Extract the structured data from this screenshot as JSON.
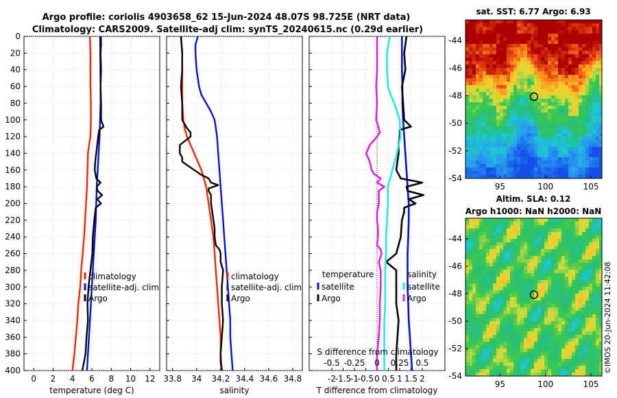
{
  "header": {
    "title_line1": "Argo profile: coriolis 4903658_62 15-Jun-2024 48.07S 98.725E (NRT data)",
    "title_line2": "Climatology: CARS2009. Satellite-adj clim: synTS_20240615.nc (0.29d earlier)",
    "watermark": "©IMOS 20-Jun-2024 11:42:08"
  },
  "colors": {
    "climatology": "#ff2200",
    "satellite": "#0010d8",
    "argo": "#000000",
    "temperature_diff": "#e020e0",
    "salinity_diff": "#20e8e8"
  },
  "chart_data": [
    {
      "type": "line",
      "id": "temperature",
      "title": "",
      "xlabel": "temperature (deg C)",
      "ylabel": "",
      "xlim": [
        -1,
        13
      ],
      "ylim": [
        400,
        0
      ],
      "x_ticks": [
        0,
        2,
        4,
        6,
        8,
        10,
        12
      ],
      "y_ticks": [
        0,
        20,
        40,
        60,
        80,
        100,
        120,
        140,
        160,
        180,
        200,
        220,
        240,
        260,
        280,
        300,
        320,
        340,
        360,
        380,
        400
      ],
      "grid": true,
      "legend": [
        "climatology",
        "satellite-adj. clim",
        "Argo"
      ],
      "legend_position": "right-middle",
      "series": [
        {
          "name": "climatology",
          "color": "#ff2200",
          "depth": [
            0,
            20,
            40,
            60,
            80,
            100,
            120,
            130,
            140,
            160,
            180,
            200,
            220,
            240,
            260,
            280,
            300,
            320,
            340,
            360,
            380,
            400
          ],
          "values": [
            5.8,
            5.85,
            5.85,
            5.85,
            5.9,
            5.9,
            5.85,
            5.7,
            5.6,
            5.55,
            5.5,
            5.4,
            5.3,
            5.2,
            5.05,
            4.9,
            4.8,
            4.6,
            4.5,
            4.35,
            4.2,
            4.0
          ]
        },
        {
          "name": "satellite-adj. clim",
          "color": "#0010d8",
          "depth": [
            0,
            20,
            40,
            60,
            80,
            100,
            120,
            140,
            160,
            180,
            200,
            220,
            240,
            260,
            280,
            300,
            320,
            340,
            360,
            380,
            400
          ],
          "values": [
            6.85,
            6.87,
            6.88,
            6.9,
            6.9,
            6.85,
            6.8,
            6.7,
            6.6,
            6.5,
            6.45,
            6.4,
            6.3,
            6.2,
            6.1,
            6.0,
            5.9,
            5.8,
            5.7,
            5.6,
            5.5
          ]
        },
        {
          "name": "Argo",
          "color": "#000000",
          "depth": [
            0,
            10,
            20,
            40,
            60,
            80,
            100,
            108,
            112,
            120,
            130,
            140,
            150,
            160,
            170,
            175,
            180,
            185,
            190,
            195,
            200,
            205,
            210,
            220,
            240,
            260,
            280,
            300,
            320,
            340,
            360,
            380,
            395,
            400
          ],
          "values": [
            6.93,
            6.95,
            6.9,
            6.95,
            6.9,
            6.95,
            6.95,
            7.2,
            6.75,
            6.65,
            6.55,
            6.45,
            6.35,
            6.3,
            6.45,
            6.9,
            6.5,
            6.6,
            7.05,
            6.55,
            6.95,
            6.4,
            6.35,
            6.25,
            6.1,
            6.05,
            5.85,
            5.65,
            5.55,
            5.6,
            5.45,
            5.35,
            5.1,
            5.0
          ]
        }
      ]
    },
    {
      "type": "line",
      "id": "salinity",
      "title": "",
      "xlabel": "salinity",
      "ylabel": "",
      "xlim": [
        33.75,
        34.88
      ],
      "ylim": [
        400,
        0
      ],
      "x_ticks": [
        33.8,
        34,
        34.2,
        34.4,
        34.6,
        34.8
      ],
      "y_ticks": [
        0,
        20,
        40,
        60,
        80,
        100,
        120,
        140,
        160,
        180,
        200,
        220,
        240,
        260,
        280,
        300,
        320,
        340,
        360,
        380,
        400
      ],
      "grid": true,
      "legend": [
        "climatology",
        "satellite-adj. clim",
        "Argo"
      ],
      "legend_position": "right-middle",
      "series": [
        {
          "name": "climatology",
          "color": "#ff2200",
          "depth": [
            0,
            20,
            40,
            60,
            80,
            100,
            110,
            120,
            130,
            140,
            150,
            160,
            170,
            180,
            200,
            220,
            240,
            260,
            280,
            300,
            320,
            340,
            360,
            380,
            400
          ],
          "values": [
            33.87,
            33.88,
            33.88,
            33.88,
            33.88,
            33.89,
            33.9,
            33.92,
            33.95,
            33.98,
            34.01,
            34.04,
            34.06,
            34.08,
            34.1,
            34.12,
            34.14,
            34.15,
            34.16,
            34.17,
            34.18,
            34.19,
            34.2,
            34.2,
            34.21
          ]
        },
        {
          "name": "satellite-adj. clim",
          "color": "#0010d8",
          "depth": [
            0,
            10,
            20,
            40,
            50,
            60,
            70,
            80,
            90,
            100,
            120,
            140,
            160,
            180,
            200,
            220,
            240,
            260,
            280,
            300,
            320,
            340,
            360,
            380,
            400
          ],
          "values": [
            34.01,
            33.99,
            33.99,
            34.0,
            34.01,
            34.02,
            34.04,
            34.08,
            34.12,
            34.15,
            34.17,
            34.18,
            34.19,
            34.2,
            34.21,
            34.22,
            34.23,
            34.24,
            34.25,
            34.26,
            34.27,
            34.28,
            34.28,
            34.29,
            34.3
          ]
        },
        {
          "name": "Argo",
          "color": "#000000",
          "depth": [
            0,
            20,
            40,
            60,
            80,
            100,
            110,
            115,
            120,
            130,
            140,
            145,
            150,
            160,
            165,
            170,
            175,
            178,
            182,
            185,
            190,
            200,
            210,
            220,
            230,
            240,
            250,
            255,
            260,
            270,
            280,
            300,
            320,
            340,
            360,
            380,
            390,
            400
          ],
          "values": [
            33.87,
            33.88,
            33.88,
            33.87,
            33.88,
            33.88,
            33.92,
            33.95,
            33.95,
            33.86,
            33.86,
            33.88,
            33.88,
            33.98,
            34.03,
            34.1,
            34.12,
            34.18,
            34.1,
            34.1,
            34.12,
            34.12,
            34.13,
            34.14,
            34.15,
            34.15,
            34.16,
            34.19,
            34.2,
            34.2,
            34.22,
            34.21,
            34.21,
            34.22,
            34.21,
            34.2,
            34.2,
            34.21
          ]
        }
      ]
    },
    {
      "type": "line",
      "id": "differences",
      "title": "",
      "xlabel": "T difference from climatology",
      "xlabel_secondary": "S difference from climatology",
      "ylabel": "",
      "xlim": [
        -3,
        3
      ],
      "ylim": [
        400,
        0
      ],
      "x_ticks": [
        -2,
        -1.5,
        -1,
        -0.5,
        0,
        0.5,
        1,
        1.5,
        2
      ],
      "x_tick_labels": [
        "-2",
        "-1.5",
        "-1",
        "-0.5",
        "0",
        "0.5",
        "1",
        "1.5",
        "2"
      ],
      "secondary_x_ticks": [
        -0.5,
        -0.25,
        0,
        0.25,
        0.5
      ],
      "secondary_x_tick_labels": [
        "-0.5",
        "-0.25",
        "0",
        "0.25",
        "0.5"
      ],
      "y_ticks": [
        0,
        20,
        40,
        60,
        80,
        100,
        120,
        140,
        160,
        180,
        200,
        220,
        240,
        260,
        280,
        300,
        320,
        340,
        360,
        380,
        400
      ],
      "grid": true,
      "legend_left_title": "temperature",
      "legend_left": [
        "satellite",
        "Argo"
      ],
      "legend_right_title": "salinity",
      "legend_right": [
        "satellite",
        "Argo"
      ],
      "legend_position": "middle",
      "series": [
        {
          "name": "T satellite",
          "color": "#0010d8",
          "depth": [
            0,
            20,
            40,
            60,
            80,
            100,
            120,
            140,
            160,
            180,
            200,
            220,
            240,
            260,
            280,
            300,
            320,
            340,
            360,
            380,
            400
          ],
          "values": [
            1.1,
            1.1,
            1.1,
            1.12,
            1.12,
            1.15,
            1.2,
            1.25,
            1.3,
            1.35,
            1.4,
            1.4,
            1.38,
            1.35,
            1.35,
            1.35,
            1.38,
            1.4,
            1.45,
            1.5,
            1.55
          ]
        },
        {
          "name": "T Argo",
          "color": "#000000",
          "depth": [
            0,
            10,
            20,
            40,
            60,
            80,
            100,
            108,
            112,
            120,
            130,
            140,
            150,
            160,
            170,
            175,
            180,
            185,
            190,
            195,
            200,
            205,
            210,
            220,
            240,
            260,
            270,
            280,
            300,
            320,
            340,
            360,
            380,
            400
          ],
          "values": [
            1.3,
            1.25,
            1.2,
            1.25,
            1.1,
            1.15,
            1.2,
            1.5,
            1.0,
            1.0,
            0.95,
            0.95,
            0.9,
            0.85,
            1.05,
            2.0,
            1.3,
            1.35,
            2.05,
            1.4,
            1.7,
            1.2,
            1.2,
            1.1,
            1.05,
            0.85,
            0.4,
            0.85,
            0.85,
            0.85,
            0.95,
            0.9,
            0.85,
            0.85
          ]
        },
        {
          "name": "S satellite",
          "color": "#20e8e8",
          "depth": [
            0,
            20,
            40,
            60,
            70,
            80,
            100,
            120,
            140,
            160,
            180,
            200,
            220,
            240,
            260,
            280,
            300,
            320,
            340,
            360,
            380,
            400
          ],
          "values": [
            0.14,
            0.11,
            0.11,
            0.12,
            0.15,
            0.19,
            0.25,
            0.26,
            0.22,
            0.17,
            0.12,
            0.12,
            0.11,
            0.1,
            0.1,
            0.09,
            0.09,
            0.09,
            0.08,
            0.08,
            0.08,
            0.08
          ]
        },
        {
          "name": "S Argo",
          "color": "#e020e0",
          "depth": [
            0,
            20,
            40,
            60,
            80,
            100,
            110,
            115,
            120,
            130,
            140,
            145,
            150,
            160,
            165,
            170,
            175,
            180,
            185,
            190,
            200,
            210,
            220,
            230,
            240,
            250,
            255,
            260,
            270,
            280,
            300,
            320,
            340,
            360,
            380,
            400
          ],
          "values": [
            0.0,
            0.0,
            0.0,
            -0.01,
            0.0,
            -0.01,
            0.02,
            0.03,
            0.0,
            -0.08,
            -0.12,
            -0.1,
            -0.08,
            -0.06,
            -0.03,
            0.04,
            0.0,
            0.08,
            0.02,
            0.02,
            0.02,
            0.0,
            0.0,
            0.01,
            0.01,
            0.0,
            0.04,
            0.05,
            0.02,
            0.04,
            0.04,
            0.03,
            0.03,
            0.02,
            0.0,
            0.0
          ]
        }
      ]
    },
    {
      "type": "heatmap",
      "id": "sst_map",
      "title": "sat. SST: 6.77 Argo: 6.93",
      "xlim": [
        91.2,
        106.2
      ],
      "ylim": [
        -54,
        -42.5
      ],
      "x_ticks": [
        95,
        100,
        105
      ],
      "y_ticks": [
        -44,
        -46,
        -48,
        -50,
        -52,
        -54
      ],
      "marker": {
        "lon": 98.725,
        "lat": -48.07
      }
    },
    {
      "type": "heatmap",
      "id": "sla_map",
      "title_line1": "Altim. SLA: 0.12",
      "title_line2": "Argo h1000: NaN h2000: NaN",
      "xlim": [
        91.2,
        106.2
      ],
      "ylim": [
        -54,
        -42.5
      ],
      "x_ticks": [
        95,
        100,
        105
      ],
      "y_ticks": [
        -44,
        -46,
        -48,
        -50,
        -52,
        -54
      ],
      "marker": {
        "lon": 98.725,
        "lat": -48.07
      }
    }
  ]
}
